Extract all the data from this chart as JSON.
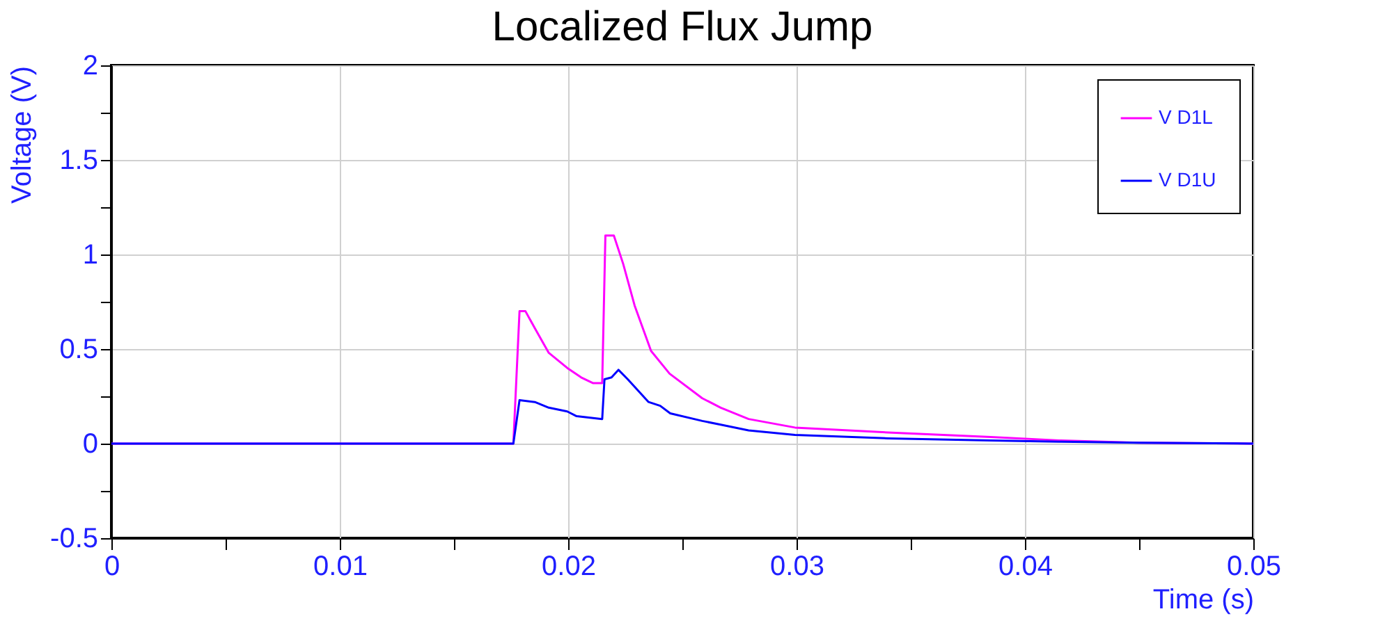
{
  "chart_data": {
    "type": "line",
    "title": "Localized Flux Jump",
    "xlabel": "Time (s)",
    "ylabel": "Voltage (V)",
    "xlim": [
      0,
      0.05
    ],
    "ylim": [
      -0.5,
      2
    ],
    "xticks": [
      0,
      {
        "value": 0.005,
        "label": null
      },
      0.01,
      {
        "value": 0.015,
        "label": null
      },
      0.02,
      {
        "value": 0.025,
        "label": null
      },
      0.03,
      {
        "value": 0.035,
        "label": null
      },
      0.04,
      {
        "value": 0.045,
        "label": null
      },
      0.05
    ],
    "yticks": [
      -0.5,
      {
        "value": -0.25,
        "label": null
      },
      0,
      {
        "value": 0.25,
        "label": null
      },
      0.5,
      {
        "value": 0.75,
        "label": null
      },
      1,
      {
        "value": 1.25,
        "label": null
      },
      1.5,
      {
        "value": 1.75,
        "label": null
      },
      2
    ],
    "grid": true,
    "legend": "top right",
    "line_style": "solid",
    "marker": "none",
    "series": [
      {
        "name": "V D1L",
        "color": "#ff00ff",
        "x": [
          0,
          0.01,
          0.0176,
          0.01787,
          0.01813,
          0.01854,
          0.01915,
          0.01996,
          0.02057,
          0.02108,
          0.02149,
          0.02163,
          0.022,
          0.02241,
          0.02291,
          0.02363,
          0.02444,
          0.02587,
          0.02668,
          0.0279,
          0.02993,
          0.034,
          0.0385,
          0.0415,
          0.045,
          0.05
        ],
        "values": [
          0,
          0,
          0,
          0.7,
          0.7,
          0.61,
          0.48,
          0.4,
          0.35,
          0.32,
          0.32,
          1.1,
          1.1,
          0.95,
          0.73,
          0.49,
          0.37,
          0.24,
          0.19,
          0.13,
          0.085,
          0.059,
          0.035,
          0.017,
          0.005,
          0
        ]
      },
      {
        "name": "V D1U",
        "color": "#0000ff",
        "x": [
          0,
          0.01,
          0.0176,
          0.01787,
          0.01854,
          0.01915,
          0.01996,
          0.02037,
          0.02149,
          0.02159,
          0.0219,
          0.0222,
          0.02261,
          0.02352,
          0.02403,
          0.02447,
          0.02587,
          0.02668,
          0.0279,
          0.02993,
          0.034,
          0.0385,
          0.0415,
          0.045,
          0.05
        ],
        "values": [
          0,
          0,
          0,
          0.23,
          0.22,
          0.19,
          0.17,
          0.145,
          0.13,
          0.34,
          0.35,
          0.39,
          0.34,
          0.22,
          0.2,
          0.16,
          0.12,
          0.1,
          0.07,
          0.046,
          0.028,
          0.017,
          0.01,
          0.005,
          0
        ]
      }
    ]
  }
}
